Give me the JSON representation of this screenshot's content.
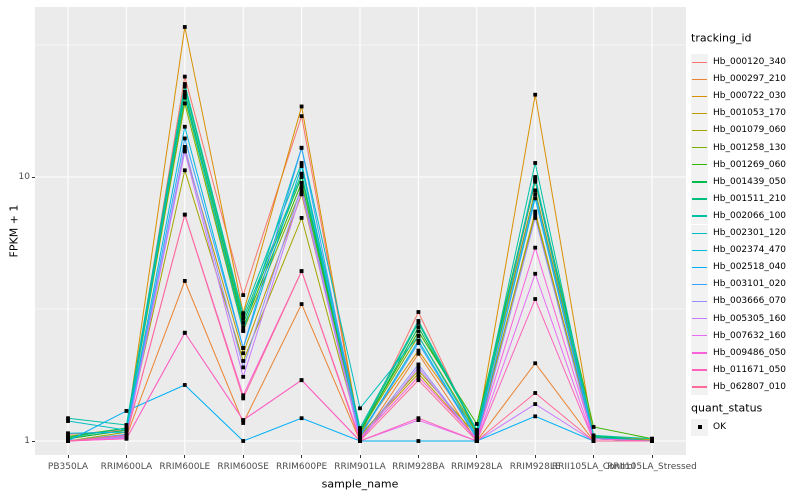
{
  "chart_data": {
    "type": "line",
    "title": "",
    "xlabel": "sample_name",
    "ylabel": "FPKM + 1",
    "y_scale": "log10",
    "y_ticks": [
      1,
      10
    ],
    "y_minor_ticks": [
      3.1623,
      31.623
    ],
    "ylim": [
      0.89,
      44
    ],
    "grid": true,
    "legend_position": "right",
    "point_shape": "square",
    "point_color": "#000000",
    "panel_bg": "#EBEBEB",
    "grid_color": "#FFFFFF",
    "categories": [
      "PB350LA",
      "RRIM600LA",
      "RRIM600LE",
      "RRIM600SE",
      "RRIM600PE",
      "RRIM901LA",
      "RRIM928BA",
      "RRIM928LA",
      "RRIM928LE",
      "RRII105LA_Control",
      "RRII105LA_Stressed"
    ],
    "series": [
      {
        "name": "Hb_000120_340",
        "color": "#F8766D",
        "values": [
          1.06,
          1.1,
          24.0,
          3.57,
          17.0,
          1.05,
          3.08,
          1.05,
          9.6,
          1.02,
          1.0
        ]
      },
      {
        "name": "Hb_000297_210",
        "color": "#EA8331",
        "values": [
          1.0,
          1.04,
          4.04,
          1.17,
          3.3,
          1.0,
          2.14,
          1.0,
          1.97,
          1.0,
          1.0
        ]
      },
      {
        "name": "Hb_000722_030",
        "color": "#D89000",
        "values": [
          1.02,
          1.1,
          37.0,
          3.05,
          18.5,
          1.07,
          2.2,
          1.08,
          20.5,
          1.05,
          1.01
        ]
      },
      {
        "name": "Hb_001053_170",
        "color": "#C09B00",
        "values": [
          1.0,
          1.06,
          12.6,
          2.15,
          8.6,
          1.04,
          1.8,
          1.02,
          7.4,
          1.02,
          1.0
        ]
      },
      {
        "name": "Hb_001079_060",
        "color": "#A3A500",
        "values": [
          1.0,
          1.08,
          10.6,
          2.01,
          7.0,
          1.05,
          1.85,
          1.05,
          7.2,
          1.02,
          1.0
        ]
      },
      {
        "name": "Hb_001258_130",
        "color": "#7CAE00",
        "values": [
          1.02,
          1.1,
          19.0,
          2.61,
          9.0,
          1.08,
          2.5,
          1.08,
          8.9,
          1.04,
          1.0
        ]
      },
      {
        "name": "Hb_001269_060",
        "color": "#39B600",
        "values": [
          1.04,
          1.12,
          20.0,
          2.7,
          9.5,
          1.09,
          2.6,
          1.16,
          9.8,
          1.13,
          1.02
        ]
      },
      {
        "name": "Hb_001439_050",
        "color": "#00BB4E",
        "values": [
          1.02,
          1.1,
          21.0,
          2.8,
          10.0,
          1.08,
          2.7,
          1.1,
          9.7,
          1.04,
          1.0
        ]
      },
      {
        "name": "Hb_001511_210",
        "color": "#00BF7D",
        "values": [
          1.03,
          1.12,
          22.0,
          2.9,
          10.3,
          1.1,
          2.8,
          1.08,
          10.0,
          1.05,
          1.0
        ]
      },
      {
        "name": "Hb_002066_100",
        "color": "#00C1A3",
        "values": [
          1.22,
          1.15,
          22.5,
          3.0,
          11.3,
          1.12,
          2.85,
          1.1,
          11.3,
          1.05,
          1.02
        ]
      },
      {
        "name": "Hb_002301_120",
        "color": "#00BFC4",
        "values": [
          1.19,
          1.1,
          20.5,
          2.61,
          12.9,
          1.33,
          2.5,
          1.05,
          9.9,
          1.03,
          1.0
        ]
      },
      {
        "name": "Hb_002374_470",
        "color": "#00BAE0",
        "values": [
          1.07,
          1.08,
          15.5,
          2.25,
          11.0,
          1.05,
          2.4,
          1.03,
          8.3,
          1.02,
          1.0
        ]
      },
      {
        "name": "Hb_002518_040",
        "color": "#00B0F6",
        "values": [
          1.0,
          1.3,
          1.63,
          1.0,
          1.22,
          1.0,
          1.0,
          1.0,
          1.24,
          1.0,
          1.0
        ]
      },
      {
        "name": "Hb_003101_020",
        "color": "#35A2FF",
        "values": [
          1.0,
          1.06,
          14.0,
          2.25,
          12.9,
          1.04,
          2.35,
          1.02,
          8.6,
          1.02,
          1.0
        ]
      },
      {
        "name": "Hb_003666_070",
        "color": "#9590FF",
        "values": [
          1.0,
          1.04,
          13.0,
          1.9,
          9.2,
          1.02,
          1.95,
          1.0,
          7.0,
          1.0,
          1.0
        ]
      },
      {
        "name": "Hb_005305_160",
        "color": "#C77CFF",
        "values": [
          1.0,
          1.03,
          12.5,
          1.75,
          8.8,
          1.0,
          1.9,
          1.0,
          1.38,
          1.0,
          1.0
        ]
      },
      {
        "name": "Hb_007632_160",
        "color": "#E76BF3",
        "values": [
          1.0,
          1.02,
          2.57,
          1.2,
          1.7,
          1.0,
          1.2,
          1.0,
          4.3,
          1.0,
          1.0
        ]
      },
      {
        "name": "Hb_009486_050",
        "color": "#FA62DB",
        "values": [
          1.0,
          1.05,
          7.2,
          1.49,
          4.4,
          1.02,
          1.75,
          1.02,
          5.4,
          1.02,
          1.0
        ]
      },
      {
        "name": "Hb_011671_050",
        "color": "#FF62BC",
        "values": [
          1.0,
          1.02,
          2.57,
          1.2,
          1.7,
          1.0,
          1.22,
          1.0,
          3.45,
          1.0,
          1.0
        ]
      },
      {
        "name": "Hb_062807_010",
        "color": "#FF6A98",
        "values": [
          1.0,
          1.05,
          7.2,
          1.45,
          4.4,
          1.0,
          1.7,
          1.0,
          1.52,
          1.0,
          1.0
        ]
      }
    ]
  },
  "legend": {
    "tracking_title": "tracking_id",
    "quant_title": "quant_status",
    "quant_items": [
      {
        "label": "OK"
      }
    ]
  }
}
